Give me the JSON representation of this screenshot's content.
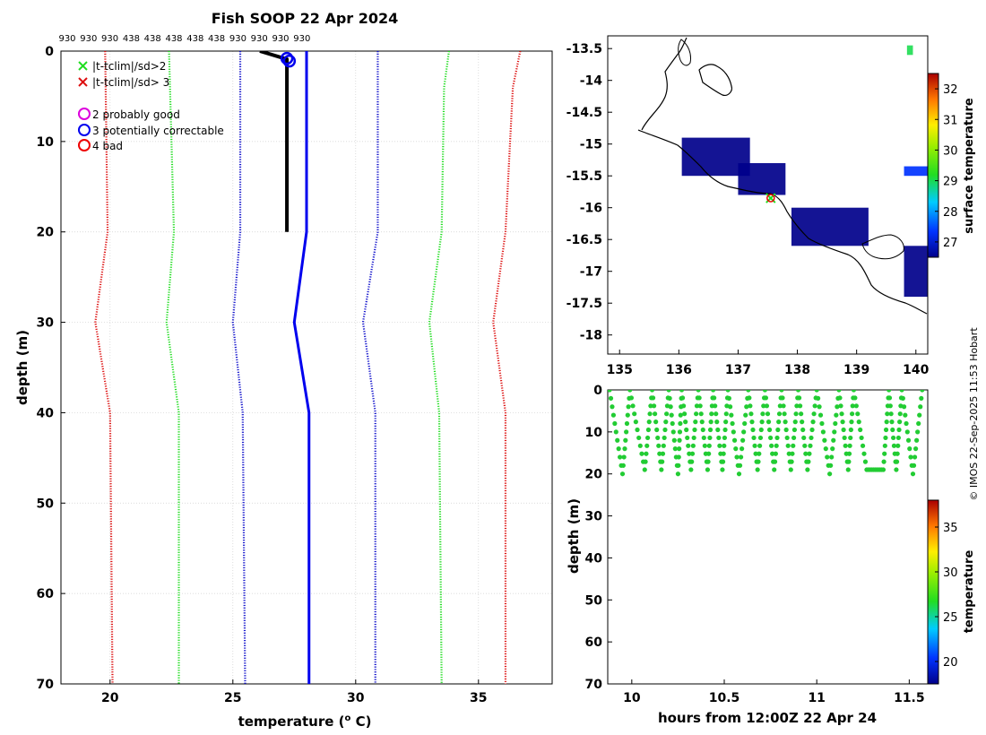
{
  "title": "Fish SOOP 22 Apr 2024",
  "credit": "© IMOS 22-Sep-2025 11:53 Hobart",
  "top_sample_labels": [
    "930",
    "930",
    "930",
    "438",
    "438",
    "438",
    "438",
    "438",
    "930",
    "930",
    "930",
    "930"
  ],
  "colors": {
    "climatology_2sd": "#22dd22",
    "climatology_3sd": "#dd1111",
    "flag_probably_good": "#dd00dd",
    "flag_potentially_correctable": "#0000ee",
    "flag_bad": "#ee0000",
    "profile_raw": "#000000",
    "profile_qc": "#0000ee",
    "inner_clim": "#1515cc",
    "coastline": "#000000",
    "sst_low": "#00008b"
  },
  "legend": {
    "items": [
      {
        "marker": "x",
        "color": "#22dd22",
        "label": "|t-tclim|/sd>2"
      },
      {
        "marker": "x",
        "color": "#dd1111",
        "label": "|t-tclim|/sd> 3"
      },
      {
        "marker": "o",
        "color": "#dd00dd",
        "label": "2  probably good"
      },
      {
        "marker": "o",
        "color": "#0000ee",
        "label": "3  potentially correctable"
      },
      {
        "marker": "o",
        "color": "#ee0000",
        "label": "4  bad"
      }
    ]
  },
  "chart_data": [
    {
      "id": "profile",
      "type": "line",
      "title": "Fish SOOP 22 Apr 2024",
      "xlabel": "temperature (",
      "xlabel_sup": "o",
      "xlabel_tail": " C)",
      "ylabel": "depth (m)",
      "xlim": [
        18,
        38
      ],
      "ylim": [
        70,
        0
      ],
      "xticks": [
        20,
        25,
        30,
        35
      ],
      "yticks": [
        0,
        10,
        20,
        30,
        40,
        50,
        60,
        70
      ],
      "grid": true,
      "series": [
        {
          "name": "clim -3sd",
          "style": "dotted",
          "color": "#dd1111",
          "depth": [
            0,
            20,
            30,
            40,
            70
          ],
          "temp": [
            19.8,
            19.9,
            19.4,
            20.0,
            20.1
          ]
        },
        {
          "name": "clim -2sd",
          "style": "dotted",
          "color": "#22dd22",
          "depth": [
            0,
            20,
            30,
            40,
            70
          ],
          "temp": [
            22.4,
            22.6,
            22.3,
            22.8,
            22.8
          ]
        },
        {
          "name": "clim -1sd",
          "style": "dotted",
          "color": "#1515cc",
          "depth": [
            0,
            20,
            30,
            40,
            70
          ],
          "temp": [
            25.3,
            25.3,
            25.0,
            25.4,
            25.5
          ]
        },
        {
          "name": "clim +1sd",
          "style": "dotted",
          "color": "#1515cc",
          "depth": [
            0,
            20,
            30,
            40,
            70
          ],
          "temp": [
            30.9,
            30.9,
            30.3,
            30.8,
            30.8
          ]
        },
        {
          "name": "clim +2sd",
          "style": "dotted",
          "color": "#22dd22",
          "depth": [
            0,
            4,
            20,
            30,
            40,
            70
          ],
          "temp": [
            33.8,
            33.6,
            33.5,
            33.0,
            33.4,
            33.5
          ]
        },
        {
          "name": "clim +3sd",
          "style": "dotted",
          "color": "#dd1111",
          "depth": [
            0,
            4,
            20,
            30,
            40,
            70
          ],
          "temp": [
            36.7,
            36.4,
            36.1,
            35.6,
            36.1,
            36.1
          ]
        },
        {
          "name": "mean climatology",
          "style": "solid",
          "color": "#0000ee",
          "depth": [
            0,
            20,
            30,
            40,
            70
          ],
          "temp": [
            28.0,
            28.0,
            27.5,
            28.1,
            28.1
          ]
        },
        {
          "name": "measured profile",
          "style": "solid-thick",
          "color": "#000000",
          "depth": [
            0,
            0.9,
            2,
            10,
            20
          ],
          "temp": [
            26.1,
            27.2,
            27.2,
            27.2,
            27.2
          ]
        }
      ],
      "flag_markers": [
        {
          "flag": 3,
          "color": "#0000ee",
          "depth": 0.8,
          "temp": 27.2
        },
        {
          "flag": 3,
          "color": "#0000ee",
          "depth": 1.1,
          "temp": 27.3
        }
      ]
    },
    {
      "id": "map",
      "type": "heatmap",
      "xlim": [
        134.8,
        140.2
      ],
      "ylim": [
        -18.3,
        -13.3
      ],
      "xticks": [
        135,
        136,
        137,
        138,
        139,
        140
      ],
      "yticks": [
        -13.5,
        -14,
        -14.5,
        -15,
        -15.5,
        -16,
        -16.5,
        -17,
        -17.5,
        -18
      ],
      "colorbar_label": "surface temperature",
      "colorbar_ticks": [
        27,
        28,
        29,
        30,
        31,
        32
      ],
      "colorbar_range": [
        26.5,
        32.5
      ],
      "sst_patches": [
        {
          "lon_range": [
            136.05,
            137.2
          ],
          "lat_range": [
            -15.5,
            -14.9
          ],
          "value": 26.5
        },
        {
          "lon_range": [
            137.0,
            137.8
          ],
          "lat_range": [
            -15.8,
            -15.3
          ],
          "value": 26.5
        },
        {
          "lon_range": [
            137.9,
            139.2
          ],
          "lat_range": [
            -16.6,
            -16.0
          ],
          "value": 26.5
        },
        {
          "lon_range": [
            139.8,
            140.2
          ],
          "lat_range": [
            -17.4,
            -16.6
          ],
          "value": 26.5
        },
        {
          "lon_range": [
            139.8,
            140.2
          ],
          "lat_range": [
            -15.5,
            -15.35
          ],
          "value": 27.5
        },
        {
          "lon_range": [
            139.85,
            139.95
          ],
          "lat_range": [
            -13.6,
            -13.45
          ],
          "value": 29.0
        }
      ],
      "tow_position": {
        "lon": 137.55,
        "lat": -15.85
      }
    },
    {
      "id": "section",
      "type": "scatter",
      "xlabel": "hours from 12:00Z 22 Apr 24",
      "ylabel": "depth (m)",
      "xlim": [
        9.87,
        11.6
      ],
      "ylim": [
        70,
        0
      ],
      "xticks": [
        10,
        10.5,
        11,
        11.5
      ],
      "xtick_labels": [
        "10",
        "10.5",
        "11",
        "11.5"
      ],
      "yticks": [
        0,
        10,
        20,
        30,
        40,
        50,
        60,
        70
      ],
      "colorbar_label": "temperature",
      "colorbar_ticks": [
        20,
        25,
        30,
        35
      ],
      "colorbar_range": [
        17.5,
        38
      ],
      "point_value": 27.2,
      "point_color": "#22cc33",
      "yo_turns": [
        {
          "t": 9.88,
          "d": 0
        },
        {
          "t": 9.95,
          "d": 20
        },
        {
          "t": 9.99,
          "d": 0
        },
        {
          "t": 10.07,
          "d": 19
        },
        {
          "t": 10.11,
          "d": 0
        },
        {
          "t": 10.16,
          "d": 19
        },
        {
          "t": 10.2,
          "d": 0
        },
        {
          "t": 10.25,
          "d": 20
        },
        {
          "t": 10.27,
          "d": 0
        },
        {
          "t": 10.32,
          "d": 19
        },
        {
          "t": 10.36,
          "d": 0
        },
        {
          "t": 10.41,
          "d": 19
        },
        {
          "t": 10.44,
          "d": 0
        },
        {
          "t": 10.49,
          "d": 19
        },
        {
          "t": 10.52,
          "d": 0
        },
        {
          "t": 10.58,
          "d": 20
        },
        {
          "t": 10.63,
          "d": 0
        },
        {
          "t": 10.68,
          "d": 19
        },
        {
          "t": 10.72,
          "d": 0
        },
        {
          "t": 10.77,
          "d": 19
        },
        {
          "t": 10.81,
          "d": 0
        },
        {
          "t": 10.86,
          "d": 19
        },
        {
          "t": 10.9,
          "d": 0
        },
        {
          "t": 10.95,
          "d": 19
        },
        {
          "t": 11.0,
          "d": 0
        },
        {
          "t": 11.07,
          "d": 20
        },
        {
          "t": 11.12,
          "d": 0
        },
        {
          "t": 11.17,
          "d": 19
        },
        {
          "t": 11.2,
          "d": 0
        },
        {
          "t": 11.27,
          "d": 19
        },
        {
          "t": 11.36,
          "d": 19
        },
        {
          "t": 11.39,
          "d": 0
        },
        {
          "t": 11.43,
          "d": 19
        },
        {
          "t": 11.46,
          "d": 0
        },
        {
          "t": 11.52,
          "d": 20
        },
        {
          "t": 11.57,
          "d": 0
        }
      ]
    }
  ]
}
